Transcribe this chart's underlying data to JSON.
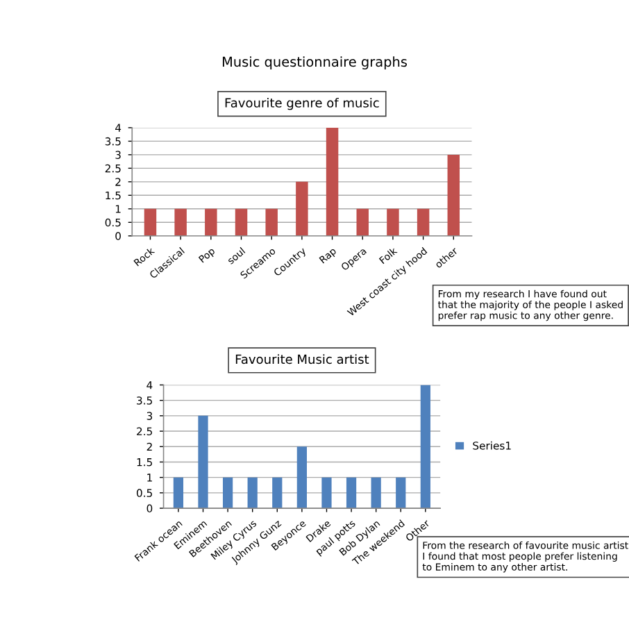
{
  "chart_data": [
    {
      "type": "bar",
      "title": "Music questionnaire graphs",
      "subtitle": "Favourite genre of music",
      "categories": [
        "Rock",
        "Classical",
        "Pop",
        "soul",
        "Screamo",
        "Country",
        "Rap",
        "Opera",
        "Folk",
        "West coast city hood",
        "other"
      ],
      "series": [
        {
          "color": "#c0504d",
          "values": [
            1,
            1,
            1,
            1,
            1,
            2,
            4,
            1,
            1,
            1,
            3
          ]
        }
      ],
      "ylim": [
        0,
        4
      ],
      "yticks": [
        0,
        0.5,
        1,
        1.5,
        2,
        2.5,
        3,
        3.5,
        4
      ],
      "grid": "y",
      "annotations": [
        "From my research I have found out that the majority of the people I asked prefer rap music to any other genre."
      ]
    },
    {
      "type": "bar",
      "title": "Favourite Music artist",
      "categories": [
        "Frank ocean",
        "Eminem",
        "Beethoven",
        "Miley Cyrus",
        "Johnny Gunz",
        "Beyonce",
        "Drake",
        "paul potts",
        "Bob Dylan",
        "The weekend",
        "Other"
      ],
      "series": [
        {
          "name": "Series1",
          "color": "#4f81bd",
          "values": [
            1,
            3,
            1,
            1,
            1,
            2,
            1,
            1,
            1,
            1,
            4
          ]
        }
      ],
      "ylim": [
        0,
        4
      ],
      "yticks": [
        0,
        0.5,
        1,
        1.5,
        2,
        2.5,
        3,
        3.5,
        4
      ],
      "grid": "y",
      "legend": "right",
      "annotations": [
        "From the research of favourite music artist I found that most people prefer listening to Eminem to any other artist."
      ]
    }
  ]
}
